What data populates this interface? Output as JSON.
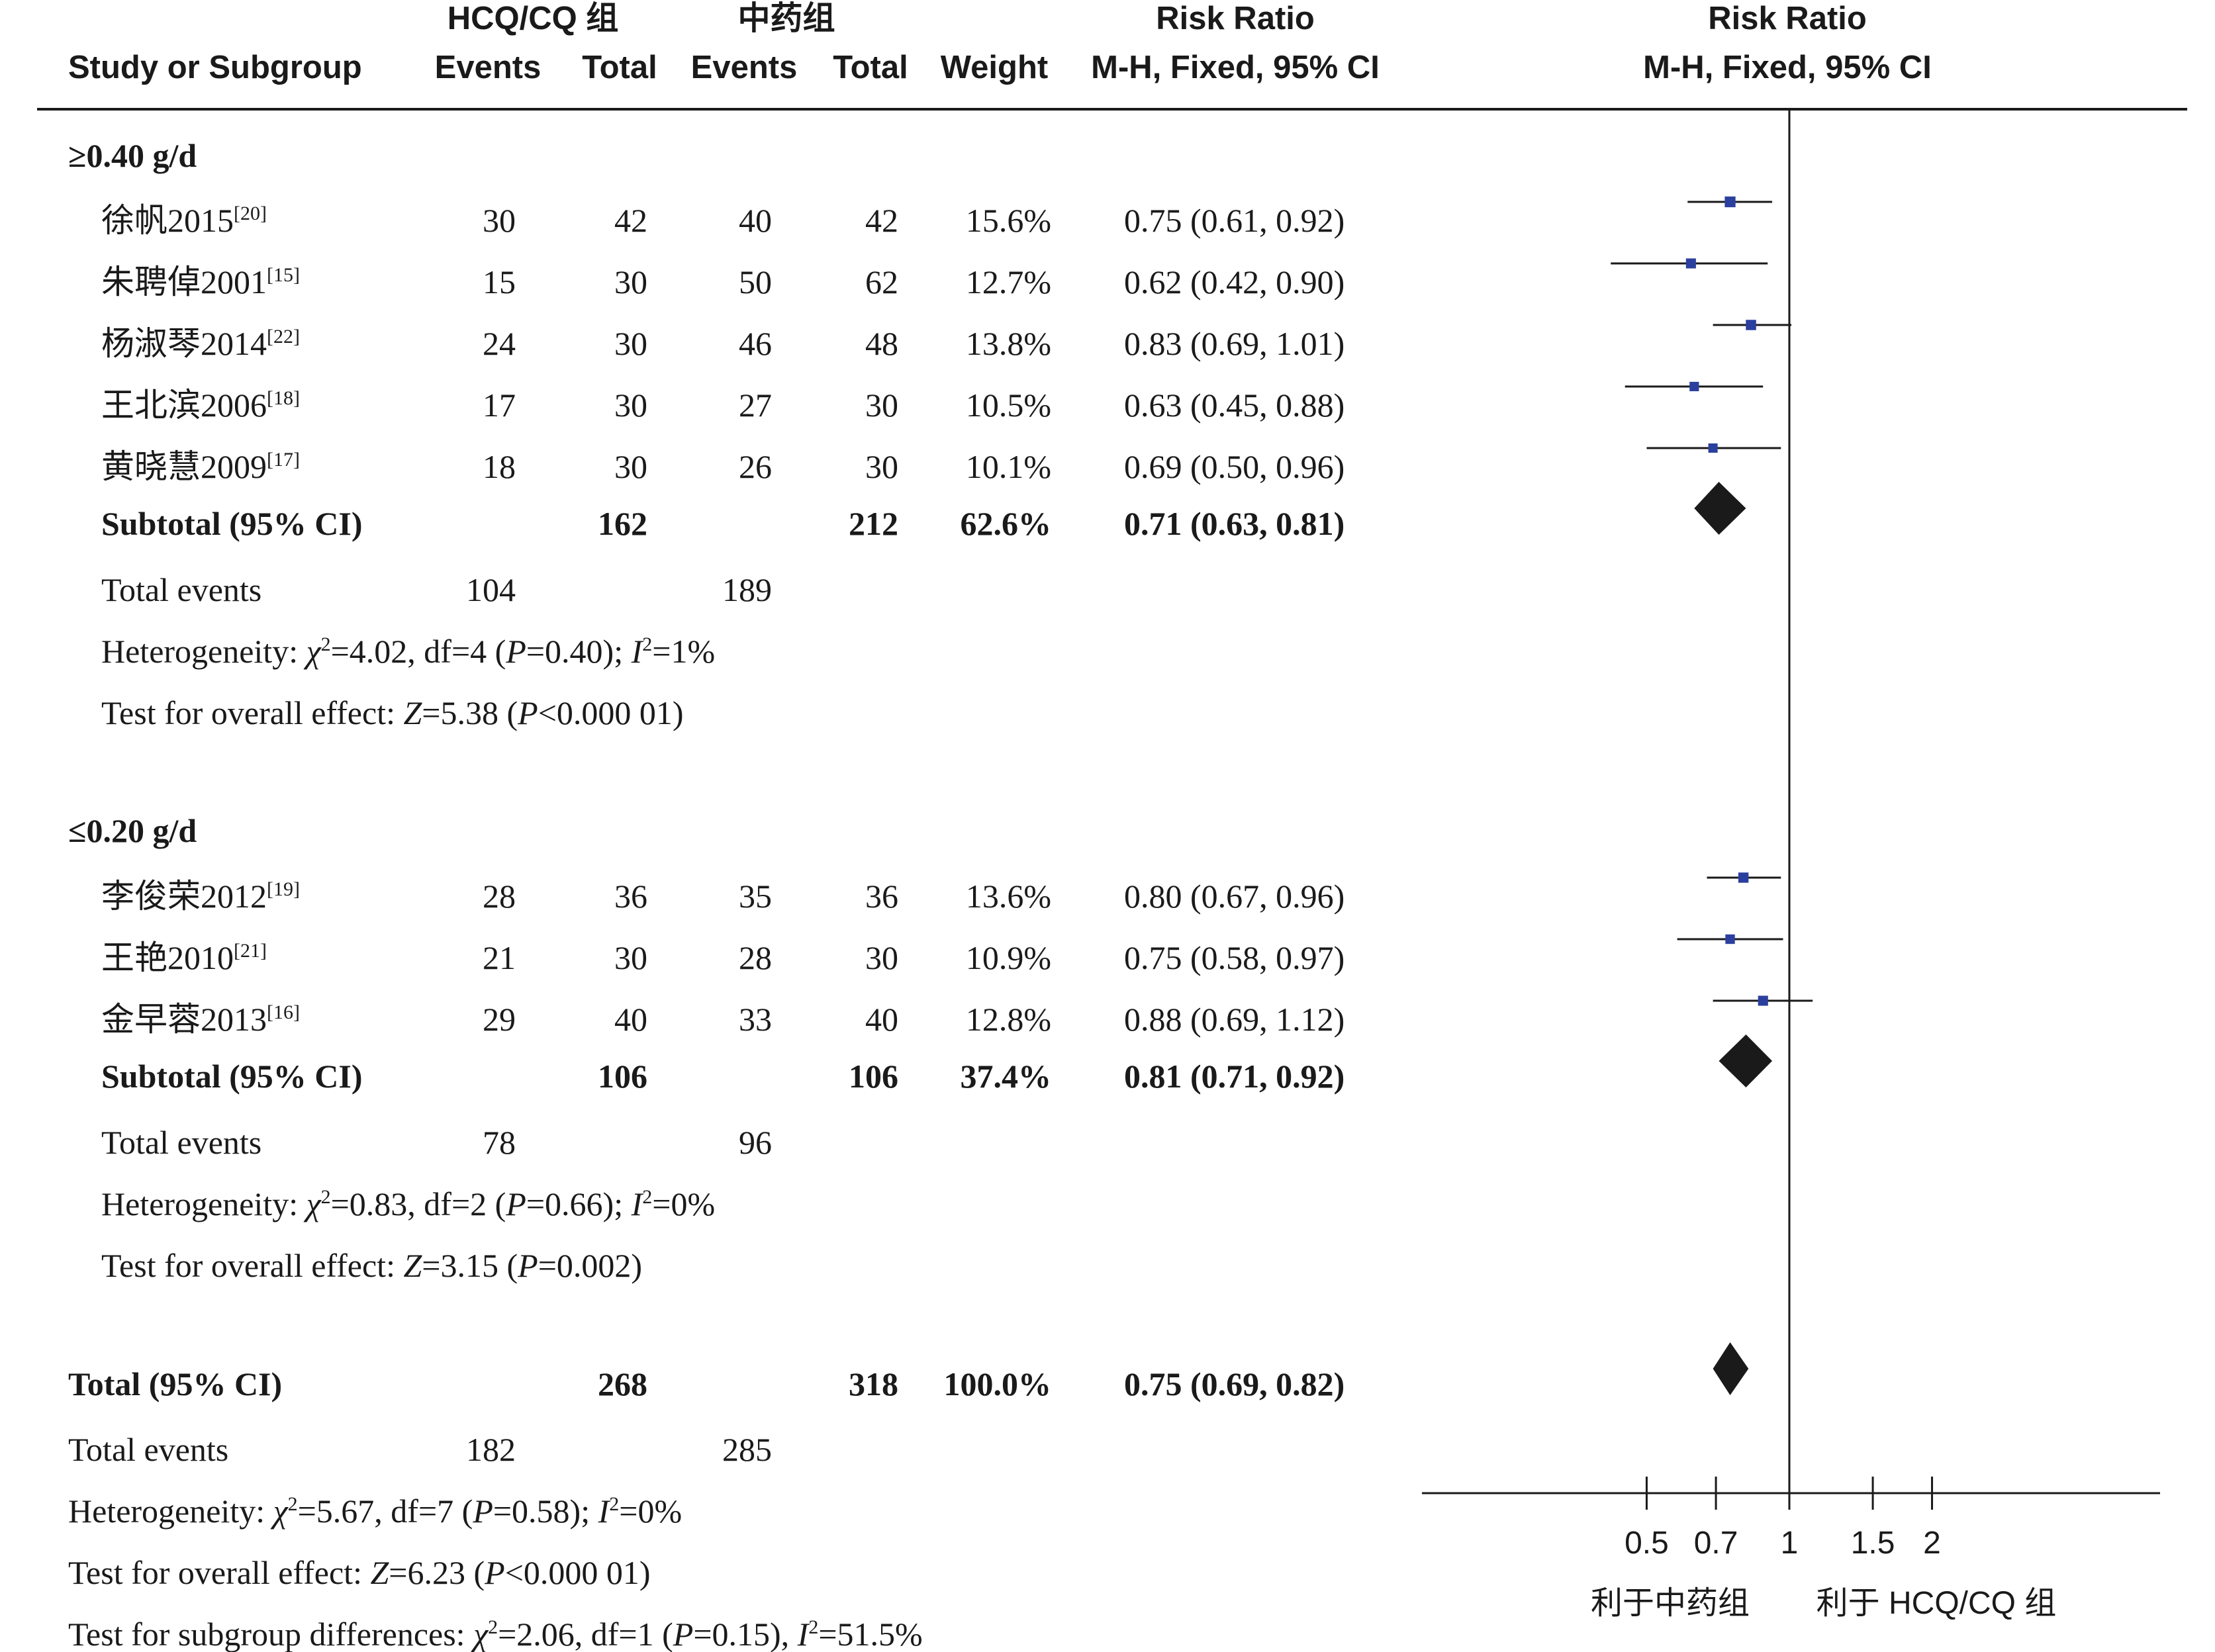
{
  "header": {
    "group1": "HCQ/CQ 组",
    "group2": "中药组",
    "study_col": "Study or Subgroup",
    "events": "Events",
    "total": "Total",
    "weight": "Weight",
    "rr_title": "Risk Ratio",
    "rr_method": "M-H, Fixed, 95% CI"
  },
  "subgroups": [
    {
      "title": "≥0.40 g/d",
      "studies": [
        {
          "name": "徐帆2015",
          "ref": "[20]",
          "e1": "30",
          "t1": "42",
          "e2": "40",
          "t2": "42",
          "weight": "15.6%",
          "ci_text": "0.75 (0.61, 0.92)"
        },
        {
          "name": "朱聘倬2001",
          "ref": "[15]",
          "e1": "15",
          "t1": "30",
          "e2": "50",
          "t2": "62",
          "weight": "12.7%",
          "ci_text": "0.62 (0.42, 0.90)"
        },
        {
          "name": "杨淑琴2014",
          "ref": "[22]",
          "e1": "24",
          "t1": "30",
          "e2": "46",
          "t2": "48",
          "weight": "13.8%",
          "ci_text": "0.83 (0.69, 1.01)"
        },
        {
          "name": "王北滨2006",
          "ref": "[18]",
          "e1": "17",
          "t1": "30",
          "e2": "27",
          "t2": "30",
          "weight": "10.5%",
          "ci_text": "0.63 (0.45, 0.88)"
        },
        {
          "name": "黄晓慧2009",
          "ref": "[17]",
          "e1": "18",
          "t1": "30",
          "e2": "26",
          "t2": "30",
          "weight": "10.1%",
          "ci_text": "0.69 (0.50, 0.96)"
        }
      ],
      "subtotal": {
        "label": "Subtotal (95% CI)",
        "t1": "162",
        "t2": "212",
        "weight": "62.6%",
        "ci_text": "0.71 (0.63, 0.81)"
      },
      "total_events": {
        "label": "Total events",
        "e1": "104",
        "e2": "189"
      },
      "heterogeneity": {
        "prefix": "Heterogeneity: ",
        "chi": "χ",
        "chi_sup": "2",
        "mid1": "=4.02, df=4 (",
        "p": "P",
        "mid2": "=0.40); ",
        "i": "I",
        "i_sup": "2",
        "end": "=1%"
      },
      "overall": {
        "prefix": "Test for overall effect: ",
        "z": "Z",
        "mid": "=5.38 (",
        "p": "P",
        "end": "<0.000 01)"
      }
    },
    {
      "title": "≤0.20 g/d",
      "studies": [
        {
          "name": "李俊荣2012",
          "ref": "[19]",
          "e1": "28",
          "t1": "36",
          "e2": "35",
          "t2": "36",
          "weight": "13.6%",
          "ci_text": "0.80 (0.67, 0.96)"
        },
        {
          "name": "王艳2010",
          "ref": "[21]",
          "e1": "21",
          "t1": "30",
          "e2": "28",
          "t2": "30",
          "weight": "10.9%",
          "ci_text": "0.75 (0.58, 0.97)"
        },
        {
          "name": "金早蓉2013",
          "ref": "[16]",
          "e1": "29",
          "t1": "40",
          "e2": "33",
          "t2": "40",
          "weight": "12.8%",
          "ci_text": "0.88 (0.69, 1.12)"
        }
      ],
      "subtotal": {
        "label": "Subtotal (95% CI)",
        "t1": "106",
        "t2": "106",
        "weight": "37.4%",
        "ci_text": "0.81 (0.71, 0.92)"
      },
      "total_events": {
        "label": "Total events",
        "e1": "78",
        "e2": "96"
      },
      "heterogeneity": {
        "prefix": "Heterogeneity: ",
        "chi": "χ",
        "chi_sup": "2",
        "mid1": "=0.83, df=2 (",
        "p": "P",
        "mid2": "=0.66); ",
        "i": "I",
        "i_sup": "2",
        "end": "=0%"
      },
      "overall": {
        "prefix": "Test for overall effect: ",
        "z": "Z",
        "mid": "=3.15 (",
        "p": "P",
        "end": "=0.002)"
      }
    }
  ],
  "total": {
    "label": "Total (95% CI)",
    "t1": "268",
    "t2": "318",
    "weight": "100.0%",
    "ci_text": "0.75 (0.69, 0.82)"
  },
  "total_events": {
    "label": "Total events",
    "e1": "182",
    "e2": "285"
  },
  "heterogeneity": {
    "prefix": "Heterogeneity: ",
    "chi": "χ",
    "chi_sup": "2",
    "mid1": "=5.67, df=7 (",
    "p": "P",
    "mid2": "=0.58); ",
    "i": "I",
    "i_sup": "2",
    "end": "=0%"
  },
  "overall": {
    "prefix": "Test for overall effect: ",
    "z": "Z",
    "mid": "=6.23 (",
    "p": "P",
    "end": "<0.000 01)"
  },
  "subgroup_diff": {
    "prefix": "Test for subgroup differences: ",
    "chi": "χ",
    "chi_sup": "2",
    "mid1": "=2.06, df=1 (",
    "p": "P",
    "mid2": "=0.15), ",
    "i": "I",
    "i_sup": "2",
    "end": "=51.5%"
  },
  "axis": {
    "ticks": [
      0.5,
      0.7,
      1,
      1.5,
      2
    ],
    "tick_labels": [
      "0.5",
      "0.7",
      "1",
      "1.5",
      "2"
    ],
    "favours_left": "利于中药组",
    "favours_right": "利于 HCQ/CQ 组"
  },
  "colors": {
    "point": "#2b3f9e",
    "diamond": "#1a1a1a",
    "line": "#1a1a1a"
  },
  "chart_data": {
    "type": "forest",
    "scale": "log",
    "xlim": [
      0.5,
      2
    ],
    "null_line": 1,
    "series": [
      {
        "name": "≥0.40 g/d",
        "points": [
          {
            "study": "徐帆2015",
            "rr": 0.75,
            "lo": 0.61,
            "hi": 0.92,
            "weight": 15.6
          },
          {
            "study": "朱聘倬2001",
            "rr": 0.62,
            "lo": 0.42,
            "hi": 0.9,
            "weight": 12.7
          },
          {
            "study": "杨淑琴2014",
            "rr": 0.83,
            "lo": 0.69,
            "hi": 1.01,
            "weight": 13.8
          },
          {
            "study": "王北滨2006",
            "rr": 0.63,
            "lo": 0.45,
            "hi": 0.88,
            "weight": 10.5
          },
          {
            "study": "黄晓慧2009",
            "rr": 0.69,
            "lo": 0.5,
            "hi": 0.96,
            "weight": 10.1
          }
        ],
        "subtotal": {
          "rr": 0.71,
          "lo": 0.63,
          "hi": 0.81
        }
      },
      {
        "name": "≤0.20 g/d",
        "points": [
          {
            "study": "李俊荣2012",
            "rr": 0.8,
            "lo": 0.67,
            "hi": 0.96,
            "weight": 13.6
          },
          {
            "study": "王艳2010",
            "rr": 0.75,
            "lo": 0.58,
            "hi": 0.97,
            "weight": 10.9
          },
          {
            "study": "金早蓉2013",
            "rr": 0.88,
            "lo": 0.69,
            "hi": 1.12,
            "weight": 12.8
          }
        ],
        "subtotal": {
          "rr": 0.81,
          "lo": 0.71,
          "hi": 0.92
        }
      }
    ],
    "overall": {
      "rr": 0.75,
      "lo": 0.69,
      "hi": 0.82
    }
  }
}
